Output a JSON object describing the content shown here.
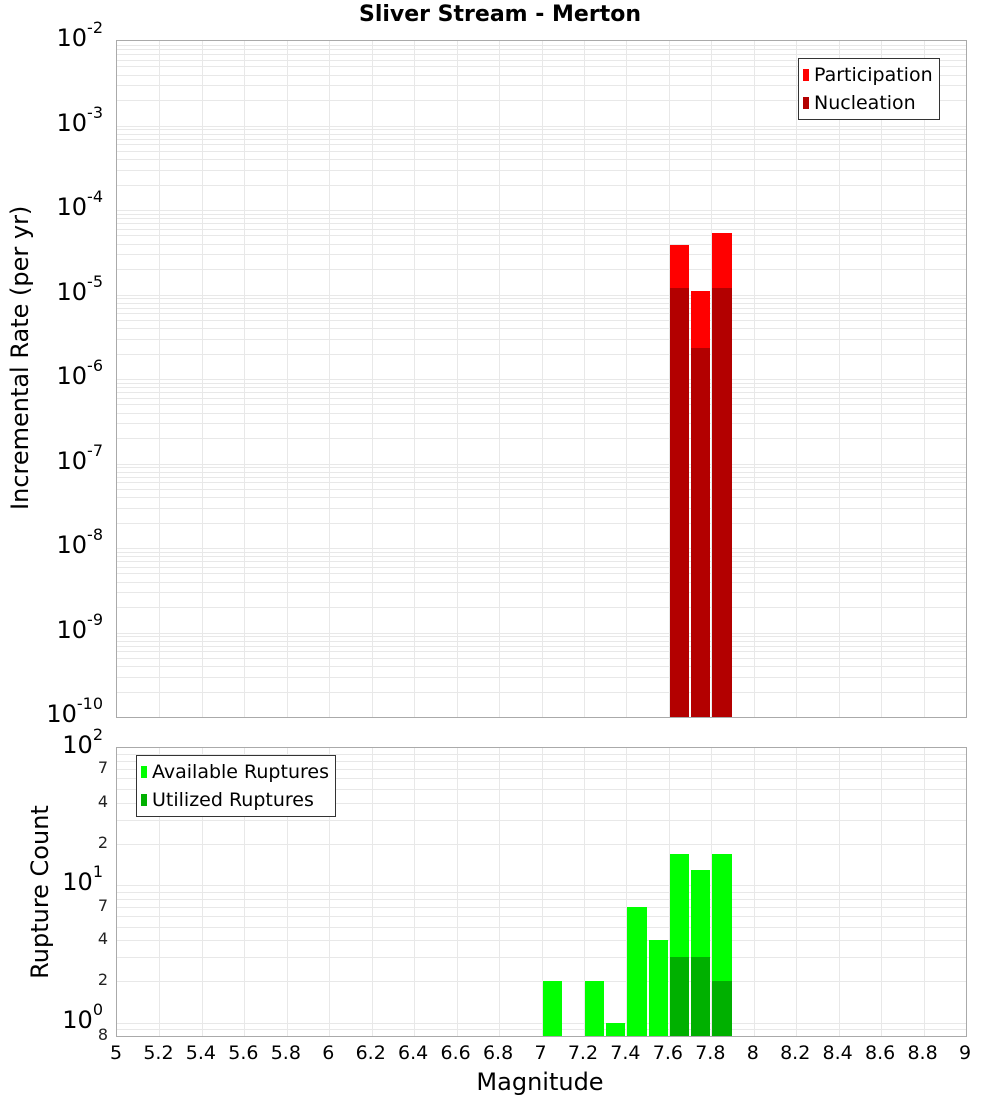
{
  "title": "Sliver Stream - Merton",
  "colors": {
    "participation": "#ff0000",
    "nucleation": "#b30000",
    "available": "#00ff00",
    "utilized": "#00b000",
    "grid": "#e8e8e8",
    "border": "#aaaaaa"
  },
  "top_chart": {
    "ylabel": "Incremental Rate (per yr)",
    "yticks": [
      {
        "base": "10",
        "exp": "-2"
      },
      {
        "base": "10",
        "exp": "-3"
      },
      {
        "base": "10",
        "exp": "-4"
      },
      {
        "base": "10",
        "exp": "-5"
      },
      {
        "base": "10",
        "exp": "-6"
      },
      {
        "base": "10",
        "exp": "-7"
      },
      {
        "base": "10",
        "exp": "-8"
      },
      {
        "base": "10",
        "exp": "-9"
      },
      {
        "base": "10",
        "exp": "-10"
      }
    ],
    "legend": [
      "Participation",
      "Nucleation"
    ]
  },
  "bottom_chart": {
    "ylabel": "Rupture Count",
    "yticks_major": [
      {
        "base": "10",
        "exp": "2"
      },
      {
        "base": "10",
        "exp": "1"
      },
      {
        "base": "10",
        "exp": "0"
      }
    ],
    "yticks_minor": [
      "7",
      "4",
      "2",
      "7",
      "4",
      "2",
      "8"
    ],
    "legend": [
      "Available Ruptures",
      "Utilized Ruptures"
    ]
  },
  "xaxis": {
    "label": "Magnitude",
    "ticks": [
      "5",
      "5.2",
      "5.4",
      "5.6",
      "5.8",
      "6",
      "6.2",
      "6.4",
      "6.6",
      "6.8",
      "7",
      "7.2",
      "7.4",
      "7.6",
      "7.8",
      "8",
      "8.2",
      "8.4",
      "8.6",
      "8.8",
      "9"
    ]
  },
  "chart_data": [
    {
      "type": "bar",
      "title": "Sliver Stream - Merton",
      "xlabel": "Magnitude",
      "ylabel": "Incremental Rate (per yr)",
      "yscale": "log",
      "xlim": [
        5,
        9
      ],
      "ylim": [
        1e-10,
        0.01
      ],
      "grid": true,
      "legend_position": "top-right",
      "x": [
        7.65,
        7.75,
        7.85
      ],
      "series": [
        {
          "name": "Participation",
          "color": "#ff0000",
          "values": [
            3.9e-05,
            1.1e-05,
            5.4e-05
          ]
        },
        {
          "name": "Nucleation",
          "color": "#b30000",
          "values": [
            1.2e-05,
            2.3e-06,
            1.2e-05
          ]
        }
      ]
    },
    {
      "type": "bar",
      "xlabel": "Magnitude",
      "ylabel": "Rupture Count",
      "yscale": "log",
      "xlim": [
        5,
        9
      ],
      "ylim": [
        0.8,
        100
      ],
      "grid": true,
      "legend_position": "top-left",
      "x": [
        7.05,
        7.25,
        7.35,
        7.45,
        7.55,
        7.65,
        7.75,
        7.85
      ],
      "series": [
        {
          "name": "Available Ruptures",
          "color": "#00ff00",
          "values": [
            2,
            2,
            1,
            7,
            4,
            17,
            13,
            17
          ]
        },
        {
          "name": "Utilized Ruptures",
          "color": "#00b000",
          "values": [
            0,
            0,
            0,
            0,
            0,
            3,
            3,
            2
          ]
        }
      ]
    }
  ]
}
